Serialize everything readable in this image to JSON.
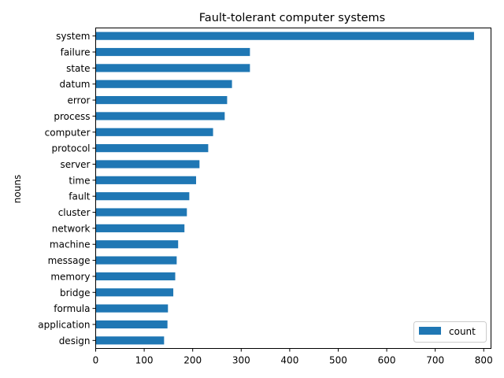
{
  "chart_data": {
    "type": "bar",
    "orientation": "horizontal",
    "title": "Fault-tolerant computer systems",
    "xlabel": "",
    "ylabel": "nouns",
    "xlim": [
      0,
      815
    ],
    "xticks": [
      0,
      100,
      200,
      300,
      400,
      500,
      600,
      700,
      800
    ],
    "categories": [
      "system",
      "failure",
      "state",
      "datum",
      "error",
      "process",
      "computer",
      "protocol",
      "server",
      "time",
      "fault",
      "cluster",
      "network",
      "machine",
      "message",
      "memory",
      "bridge",
      "formula",
      "application",
      "design"
    ],
    "series": [
      {
        "name": "count",
        "color": "#1f77b4",
        "values": [
          780,
          318,
          318,
          281,
          271,
          266,
          242,
          232,
          214,
          207,
          193,
          188,
          183,
          170,
          167,
          164,
          160,
          149,
          148,
          141
        ]
      }
    ],
    "legend": {
      "position": "lower-right",
      "entries": [
        "count"
      ]
    },
    "grid": false
  }
}
